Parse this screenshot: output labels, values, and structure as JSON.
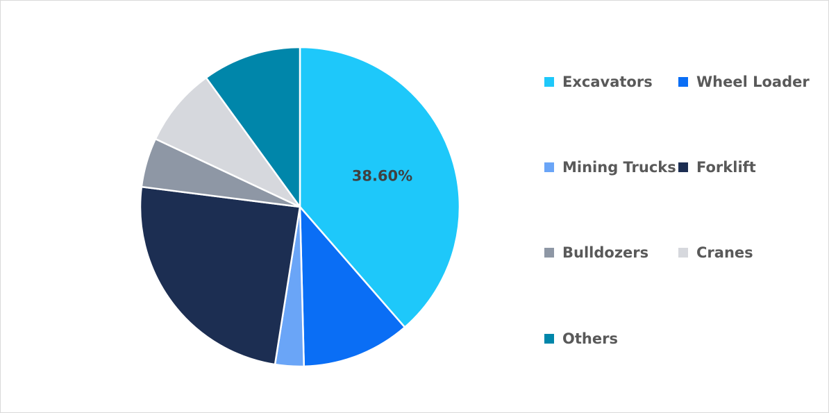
{
  "chart_data": {
    "type": "pie",
    "title": "",
    "slices": [
      {
        "name": "Excavators",
        "value": 38.6,
        "color": "#1ec8fa",
        "label": "38.60%"
      },
      {
        "name": "Wheel Loader",
        "value": 11.0,
        "color": "#0a6ef5",
        "label": ""
      },
      {
        "name": "Mining Trucks",
        "value": 2.9,
        "color": "#6aa5f7",
        "label": ""
      },
      {
        "name": "Forklift",
        "value": 24.5,
        "color": "#1c2e52",
        "label": ""
      },
      {
        "name": "Bulldozers",
        "value": 5.0,
        "color": "#8e97a5",
        "label": ""
      },
      {
        "name": "Cranes",
        "value": 8.0,
        "color": "#d6d8dd",
        "label": ""
      },
      {
        "name": "Others",
        "value": 10.0,
        "color": "#0086aa",
        "label": ""
      }
    ],
    "legend": {
      "placement": "right",
      "entries": [
        "Excavators",
        "Wheel Loader",
        "Mining Trucks",
        "Forklift",
        "Bulldozers",
        "Cranes",
        "Others"
      ]
    }
  }
}
